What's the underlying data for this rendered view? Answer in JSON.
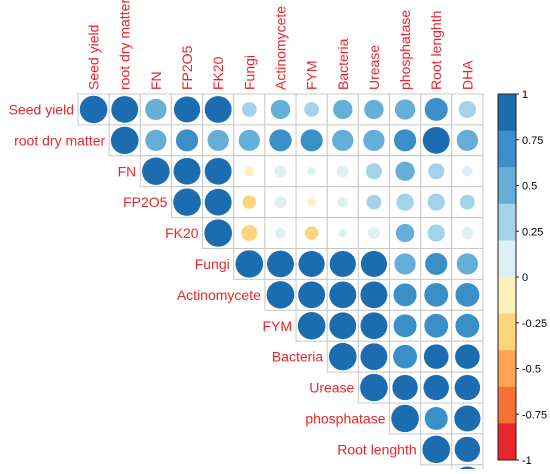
{
  "chart_data": {
    "type": "heatmap",
    "subtype": "correlation-upper-triangle-circles",
    "variables": [
      "Seed yield",
      "root dry matter",
      "FN",
      "FP2O5",
      "FK20",
      "Fungi",
      "Actinomycete",
      "FYM",
      "Bacteria",
      "Urease",
      "phosphatase",
      "Root lenghth",
      "DHA"
    ],
    "matrix": [
      [
        1,
        0.95,
        0.6,
        0.9,
        0.95,
        0.3,
        0.5,
        0.3,
        0.5,
        0.5,
        0.55,
        0.7,
        0.4
      ],
      [
        null,
        1,
        0.6,
        0.65,
        0.6,
        0.6,
        0.65,
        0.65,
        0.6,
        0.6,
        0.65,
        0.95,
        0.6
      ],
      [
        null,
        null,
        1,
        0.95,
        0.95,
        -0.15,
        0.2,
        0.1,
        0.2,
        0.35,
        0.5,
        0.35,
        0.15
      ],
      [
        null,
        null,
        null,
        1,
        0.95,
        -0.25,
        0.2,
        -0.1,
        0.15,
        0.3,
        0.4,
        0.4,
        0.3
      ],
      [
        null,
        null,
        null,
        null,
        1,
        -0.35,
        0.15,
        -0.25,
        0.1,
        0.2,
        0.45,
        0.4,
        0.2
      ],
      [
        null,
        null,
        null,
        null,
        null,
        1,
        0.95,
        0.9,
        0.9,
        0.9,
        0.6,
        0.65,
        0.6
      ],
      [
        null,
        null,
        null,
        null,
        null,
        null,
        1,
        0.95,
        0.95,
        0.95,
        0.7,
        0.75,
        0.75
      ],
      [
        null,
        null,
        null,
        null,
        null,
        null,
        null,
        1,
        0.95,
        0.95,
        0.7,
        0.75,
        0.75
      ],
      [
        null,
        null,
        null,
        null,
        null,
        null,
        null,
        null,
        1,
        0.95,
        0.75,
        0.8,
        0.8
      ],
      [
        null,
        null,
        null,
        null,
        null,
        null,
        null,
        null,
        null,
        1,
        0.85,
        0.85,
        0.85
      ],
      [
        null,
        null,
        null,
        null,
        null,
        null,
        null,
        null,
        null,
        null,
        1,
        0.7,
        0.9
      ],
      [
        null,
        null,
        null,
        null,
        null,
        null,
        null,
        null,
        null,
        null,
        null,
        1,
        0.85
      ],
      [
        null,
        null,
        null,
        null,
        null,
        null,
        null,
        null,
        null,
        null,
        null,
        null,
        1
      ]
    ],
    "color_scale": {
      "range": [
        -1,
        1
      ],
      "ticks": [
        "1",
        "0.75",
        "0.5",
        "0.25",
        "0",
        "-0.25",
        "-0.5",
        "-0.75",
        "-1"
      ],
      "colors": [
        "#1b6db0",
        "#3b8fc8",
        "#65aed7",
        "#a3d3e8",
        "#def0f4",
        "#fdf0b9",
        "#fdd57d",
        "#fca553",
        "#f57037",
        "#e8262a"
      ]
    },
    "label_color": "#e8262a",
    "grid_color": "#c8c8c8",
    "legend_position": "right"
  }
}
